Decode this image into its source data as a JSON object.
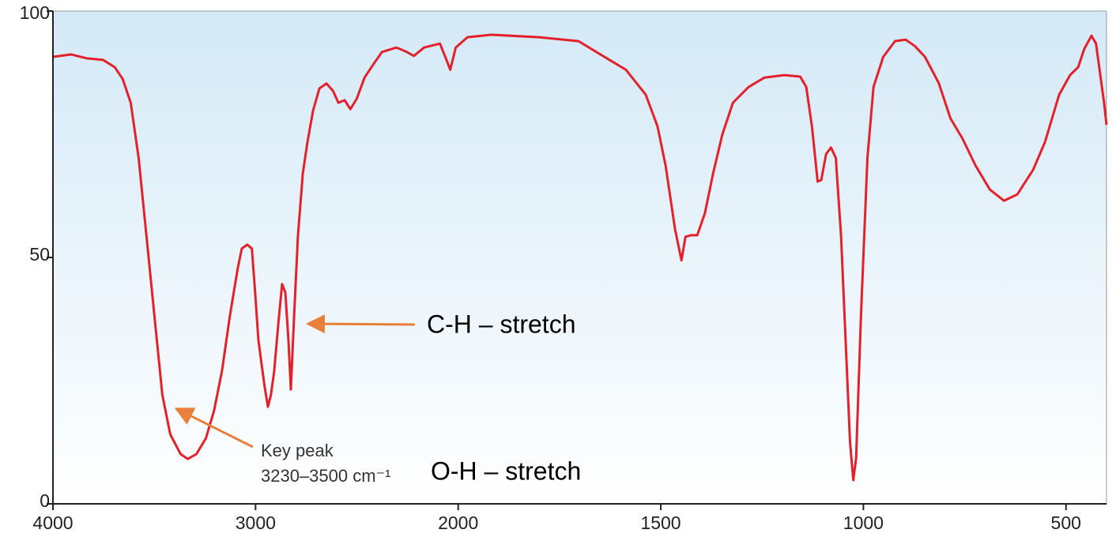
{
  "chart_data": {
    "type": "line",
    "x": [
      4000,
      3910,
      3832,
      3753,
      3695,
      3656,
      3616,
      3577,
      3538,
      3499,
      3460,
      3421,
      3370,
      3335,
      3292,
      3245,
      3205,
      3166,
      3127,
      3088,
      3068,
      3041,
      3018,
      3002,
      2986,
      2971,
      2955,
      2939,
      2924,
      2908,
      2888,
      2869,
      2853,
      2838,
      2826,
      2810,
      2791,
      2767,
      2744,
      2716,
      2685,
      2650,
      2618,
      2591,
      2560,
      2532,
      2501,
      2462,
      2415,
      2376,
      2305,
      2258,
      2219,
      2168,
      2090,
      2059,
      2039,
      2012,
      1977,
      1918,
      1801,
      1703,
      1645,
      1586,
      1537,
      1508,
      1488,
      1465,
      1449,
      1439,
      1426,
      1410,
      1391,
      1371,
      1348,
      1322,
      1283,
      1244,
      1195,
      1156,
      1141,
      1127,
      1113,
      1104,
      1092,
      1080,
      1068,
      1055,
      1043,
      1033,
      1025,
      1018,
      1006,
      990,
      975,
      951,
      922,
      896,
      873,
      848,
      814,
      785,
      756,
      723,
      688,
      653,
      620,
      581,
      552,
      517,
      490,
      470,
      455,
      437,
      426,
      406,
      400
    ],
    "values": [
      90.7,
      91.2,
      90.4,
      90.1,
      88.6,
      86.2,
      81.4,
      70.2,
      54.2,
      38.1,
      22.1,
      14.1,
      10.1,
      9.1,
      10.1,
      13.3,
      18.9,
      26.9,
      38.1,
      47.8,
      51.8,
      52.6,
      51.8,
      42.9,
      33.3,
      28.5,
      23.7,
      19.7,
      22.1,
      26.9,
      36.5,
      44.6,
      42.9,
      33.3,
      23.2,
      38.1,
      54.2,
      67.0,
      73.4,
      79.8,
      84.3,
      85.3,
      83.8,
      81.4,
      81.9,
      80.1,
      82.2,
      86.5,
      89.4,
      91.7,
      92.6,
      91.8,
      90.9,
      92.6,
      93.4,
      90.2,
      88.1,
      92.6,
      94.7,
      95.2,
      94.7,
      93.9,
      91.0,
      88.1,
      83.0,
      76.6,
      68.6,
      55.8,
      49.4,
      54.2,
      54.5,
      54.5,
      59.0,
      67.0,
      75.0,
      81.4,
      84.6,
      86.5,
      87.0,
      86.7,
      84.6,
      76.6,
      65.4,
      65.7,
      71.0,
      72.3,
      70.2,
      54.2,
      31.7,
      12.5,
      4.8,
      9.3,
      38.1,
      70.2,
      84.6,
      90.7,
      93.9,
      94.2,
      92.9,
      90.7,
      85.4,
      78.2,
      74.2,
      68.6,
      63.8,
      61.5,
      62.8,
      67.8,
      73.4,
      83.0,
      87.0,
      88.6,
      92.3,
      95.0,
      93.4,
      81.4,
      76.9
    ],
    "color": "#e3212b",
    "xlim": [
      4000,
      400
    ],
    "xticks": [
      4000,
      3000,
      2000,
      1500,
      1000,
      500
    ],
    "ylim": [
      0,
      100
    ],
    "yticks": [
      0,
      50,
      100
    ],
    "annotations": [
      "C-H – stretch",
      "Key peak",
      "3230–3500 cm⁻¹",
      "O-H – stretch"
    ]
  }
}
